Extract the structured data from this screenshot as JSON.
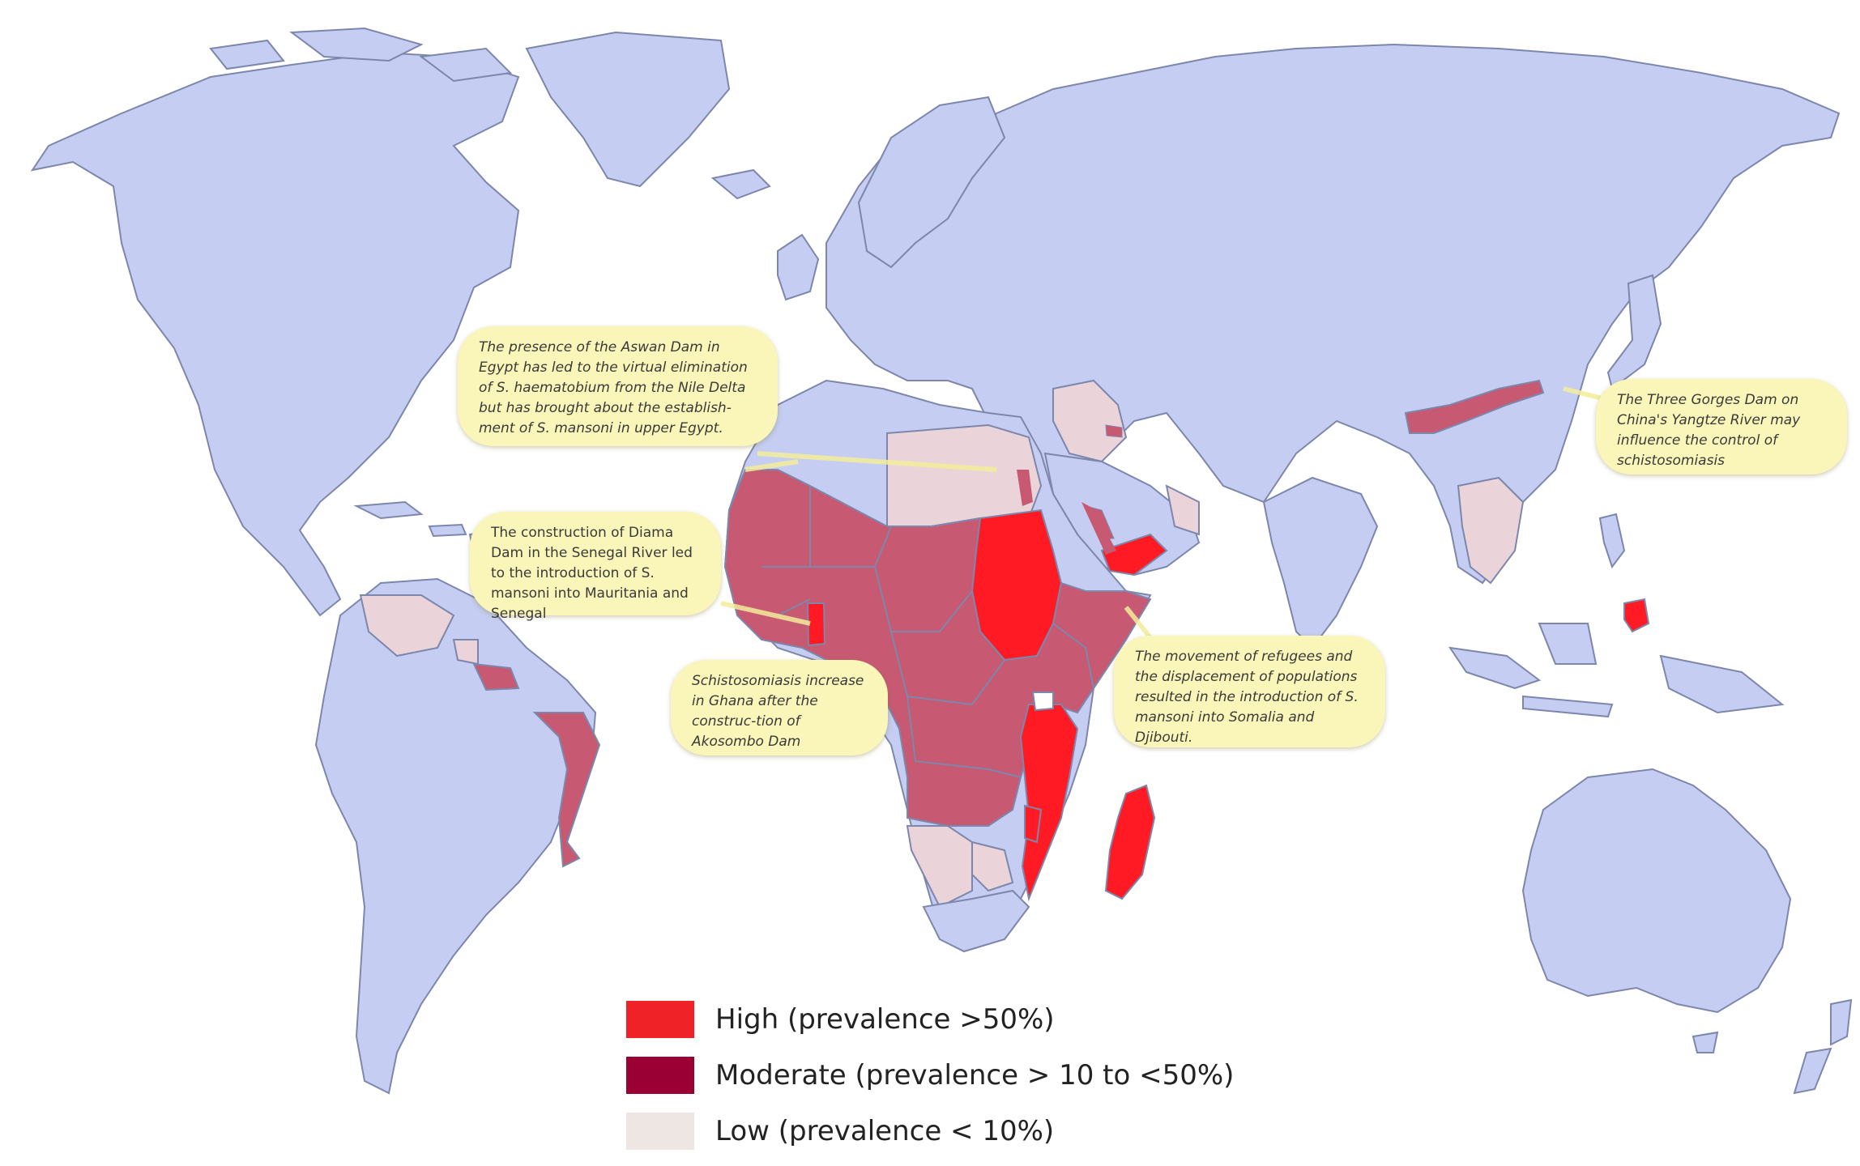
{
  "colors": {
    "ocean": "#ffffff",
    "land": "#c5cdf2",
    "border": "#7d86ab",
    "high": "#ff1a24",
    "moderate": "#c75a72",
    "low": "#ead4da",
    "callout_bg": "#faf5b8"
  },
  "callouts": {
    "aswan": "The presence of the Aswan Dam in Egypt has led to the virtual elimination of S. haematobium from the Nile Delta but has brought about the establish-ment of S. mansoni in upper Egypt.",
    "three_gorges": "The Three Gorges Dam on China's Yangtze River may influence the control of schistosomiasis",
    "diama": "The construction of Diama Dam in the Senegal River led to the introduction of S. mansoni into Mauritania and Senegal",
    "ghana": "Schistosomiasis increase in Ghana after the construc-tion of Akosombo Dam",
    "refugees": "The movement of refugees and the displacement of populations resulted in the introduction of S. mansoni into Somalia and Djibouti."
  },
  "legend": [
    {
      "label": "High (prevalence >50%)",
      "color": "#ef2227"
    },
    {
      "label": "Moderate (prevalence > 10 to <50%)",
      "color": "#9a0034"
    },
    {
      "label": "Low (prevalence < 10%)",
      "color": "#ede6e2"
    }
  ]
}
